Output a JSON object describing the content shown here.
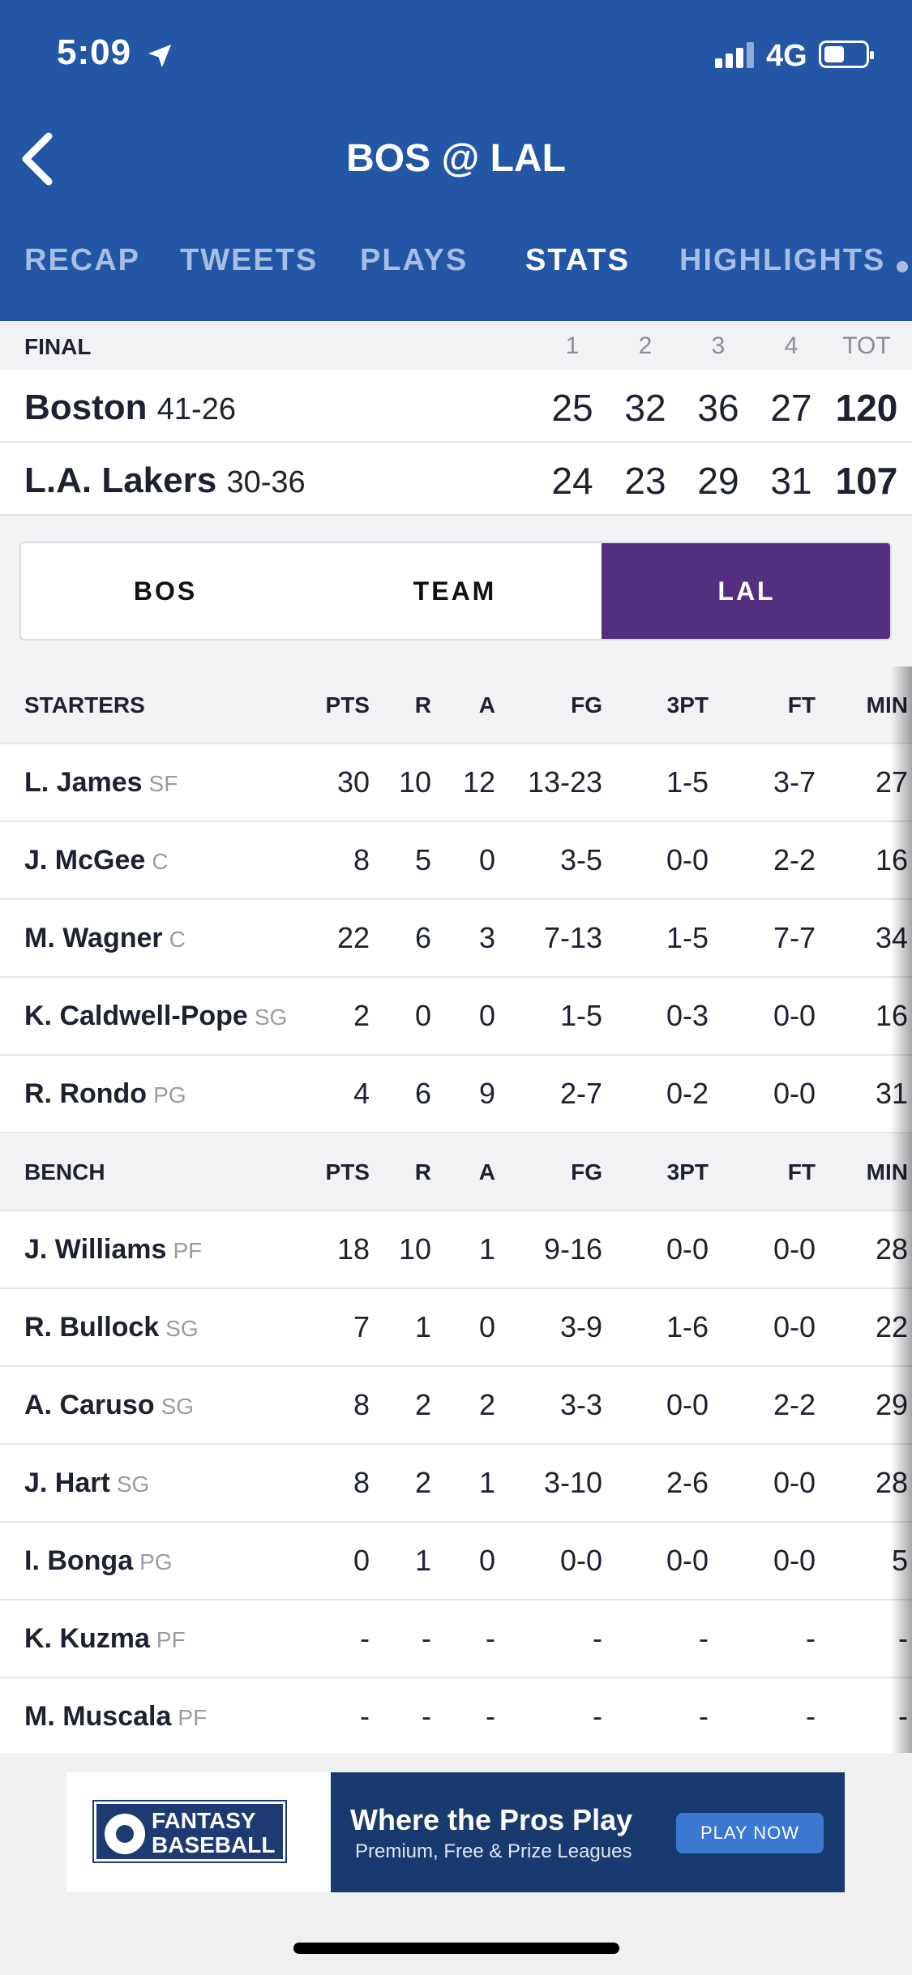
{
  "status": {
    "time": "5:09",
    "network": "4G"
  },
  "header": {
    "title": "BOS @ LAL"
  },
  "tabs": [
    {
      "label": "RECAP"
    },
    {
      "label": "TWEETS"
    },
    {
      "label": "PLAYS"
    },
    {
      "label": "STATS",
      "active": true
    },
    {
      "label": "HIGHLIGHTS"
    }
  ],
  "scoreboard": {
    "status": "FINAL",
    "columns": [
      "1",
      "2",
      "3",
      "4",
      "TOT"
    ],
    "teams": [
      {
        "name": "Boston",
        "record": "41-26",
        "scores": [
          "25",
          "32",
          "36",
          "27",
          "120"
        ]
      },
      {
        "name": "L.A. Lakers",
        "record": "30-36",
        "scores": [
          "24",
          "23",
          "29",
          "31",
          "107"
        ]
      }
    ]
  },
  "segments": [
    "BOS",
    "TEAM",
    "LAL"
  ],
  "stats_table": {
    "columns": [
      "PTS",
      "R",
      "A",
      "FG",
      "3PT",
      "FT",
      "MIN"
    ],
    "starters_label": "STARTERS",
    "bench_label": "BENCH",
    "starters": [
      {
        "name": "L. James",
        "pos": "SF",
        "stats": [
          "30",
          "10",
          "12",
          "13-23",
          "1-5",
          "3-7",
          "27"
        ]
      },
      {
        "name": "J. McGee",
        "pos": "C",
        "stats": [
          "8",
          "5",
          "0",
          "3-5",
          "0-0",
          "2-2",
          "16"
        ]
      },
      {
        "name": "M. Wagner",
        "pos": "C",
        "stats": [
          "22",
          "6",
          "3",
          "7-13",
          "1-5",
          "7-7",
          "34"
        ]
      },
      {
        "name": "K. Caldwell-Pope",
        "pos": "SG",
        "stats": [
          "2",
          "0",
          "0",
          "1-5",
          "0-3",
          "0-0",
          "16"
        ]
      },
      {
        "name": "R. Rondo",
        "pos": "PG",
        "stats": [
          "4",
          "6",
          "9",
          "2-7",
          "0-2",
          "0-0",
          "31"
        ]
      }
    ],
    "bench": [
      {
        "name": "J. Williams",
        "pos": "PF",
        "stats": [
          "18",
          "10",
          "1",
          "9-16",
          "0-0",
          "0-0",
          "28"
        ]
      },
      {
        "name": "R. Bullock",
        "pos": "SG",
        "stats": [
          "7",
          "1",
          "0",
          "3-9",
          "1-6",
          "0-0",
          "22"
        ]
      },
      {
        "name": "A. Caruso",
        "pos": "SG",
        "stats": [
          "8",
          "2",
          "2",
          "3-3",
          "0-0",
          "2-2",
          "29"
        ]
      },
      {
        "name": "J. Hart",
        "pos": "SG",
        "stats": [
          "8",
          "2",
          "1",
          "3-10",
          "2-6",
          "0-0",
          "28"
        ]
      },
      {
        "name": "I. Bonga",
        "pos": "PG",
        "stats": [
          "0",
          "1",
          "0",
          "0-0",
          "0-0",
          "0-0",
          "5"
        ]
      },
      {
        "name": "K. Kuzma",
        "pos": "PF",
        "stats": [
          "-",
          "-",
          "-",
          "-",
          "-",
          "-",
          "-"
        ]
      },
      {
        "name": "M. Muscala",
        "pos": "PF",
        "stats": [
          "-",
          "-",
          "-",
          "-",
          "-",
          "-",
          "-"
        ]
      }
    ]
  },
  "ad": {
    "logo_line1": "FANTASY",
    "logo_line2": "BASEBALL",
    "headline": "Where the Pros Play",
    "sub": "Premium, Free & Prize Leagues",
    "cta": "PLAY NOW"
  },
  "colors": {
    "header": "#2456a6",
    "active_segment": "#552f7f",
    "ad_banner": "#183a6e"
  }
}
